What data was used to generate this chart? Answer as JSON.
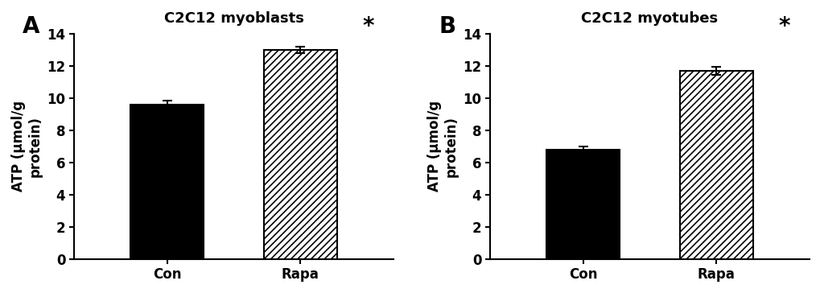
{
  "panel_A": {
    "title": "C2C12 myoblasts",
    "label": "A",
    "categories": [
      "Con",
      "Rapa"
    ],
    "values": [
      9.6,
      13.0
    ],
    "errors": [
      0.25,
      0.2
    ],
    "ylim": [
      0,
      14
    ],
    "yticks": [
      0,
      2,
      4,
      6,
      8,
      10,
      12,
      14
    ],
    "ylabel": "ATP (μmol/g\nprotein)",
    "sig_label": "*",
    "sig_bar_index": 1
  },
  "panel_B": {
    "title": "C2C12 myotubes",
    "label": "B",
    "categories": [
      "Con",
      "Rapa"
    ],
    "values": [
      6.8,
      11.7
    ],
    "errors": [
      0.2,
      0.25
    ],
    "ylim": [
      0,
      14
    ],
    "yticks": [
      0,
      2,
      4,
      6,
      8,
      10,
      12,
      14
    ],
    "ylabel": "ATP (μmol/g\nprotein)",
    "sig_label": "*",
    "sig_bar_index": 1
  },
  "bar_colors": [
    "black",
    "white"
  ],
  "bar_edgecolor": "black",
  "bar_width": 0.55,
  "hatch_pattern": "////",
  "figure_facecolor": "white",
  "font_family": "DejaVu Sans",
  "title_fontsize": 13,
  "tick_fontsize": 12,
  "ylabel_fontsize": 12,
  "sig_fontsize": 20,
  "panel_label_fontsize": 20
}
